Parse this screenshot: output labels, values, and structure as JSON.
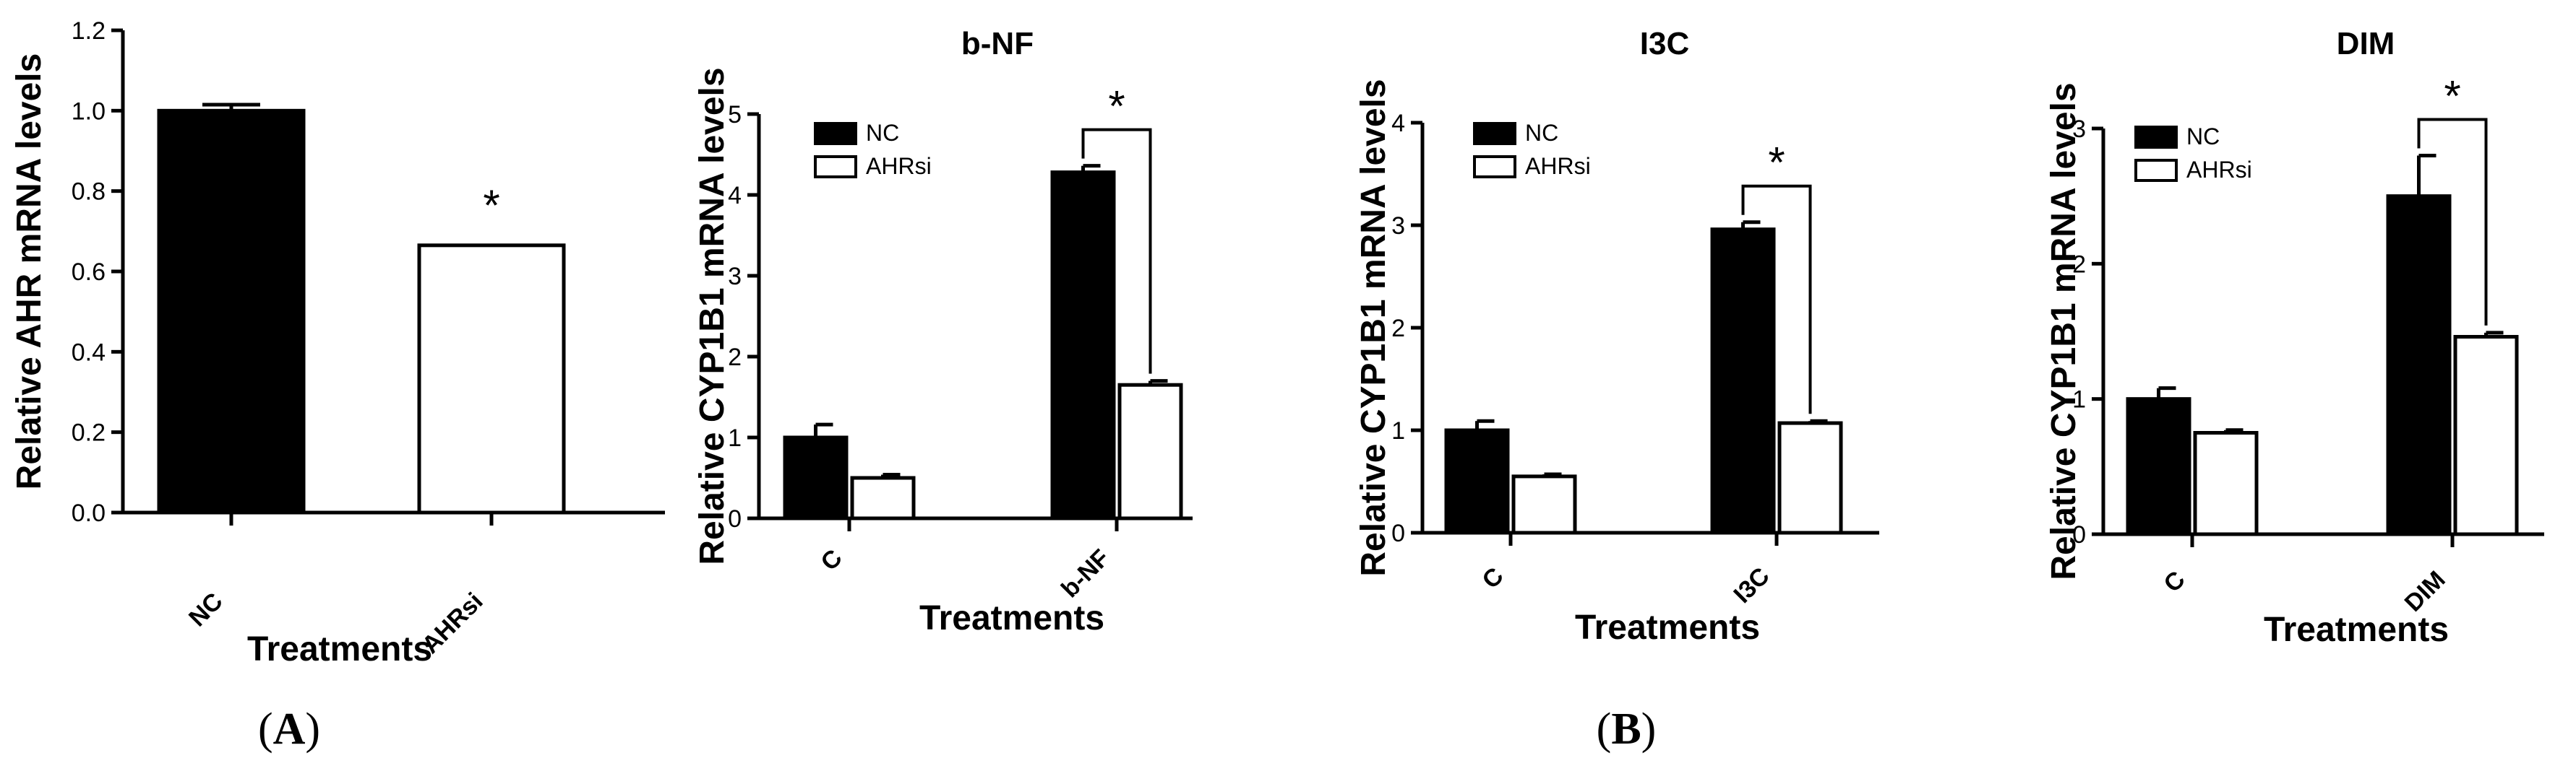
{
  "panel_labels": {
    "A": {
      "open": "(",
      "letter": "A",
      "close": ")"
    },
    "B": {
      "open": "(",
      "letter": "B",
      "close": ")"
    }
  },
  "colors": {
    "NC": "#000000",
    "AHRsi": "#ffffff",
    "outline": "#000000"
  },
  "chart_data": [
    {
      "type": "bar",
      "title": "",
      "xlabel": "Treatments",
      "ylabel": "Relative AHR mRNA levels",
      "categories": [
        "NC",
        "AHRsi"
      ],
      "ylim": [
        0,
        1.2
      ],
      "yticks": [
        "0.0",
        "0.2",
        "0.4",
        "0.6",
        "0.8",
        "1.0",
        "1.2"
      ],
      "series": [
        {
          "name": "NC",
          "values": [
            1.0,
            null
          ],
          "errors": [
            0.015,
            null
          ]
        },
        {
          "name": "AHRsi",
          "values": [
            null,
            0.665
          ],
          "errors": [
            null,
            0.0
          ]
        }
      ],
      "legend": false,
      "significance": [
        {
          "category": "AHRsi",
          "label": "*"
        }
      ]
    },
    {
      "type": "bar",
      "title": "b-NF",
      "xlabel": "Treatments",
      "ylabel": "Relative CYP1B1 mRNA levels",
      "categories": [
        "C",
        "b-NF"
      ],
      "ylim": [
        0,
        5
      ],
      "yticks": [
        "0",
        "1",
        "2",
        "3",
        "4",
        "5"
      ],
      "series": [
        {
          "name": "NC",
          "values": [
            1.0,
            4.28
          ],
          "errors": [
            0.16,
            0.08
          ]
        },
        {
          "name": "AHRsi",
          "values": [
            0.5,
            1.65
          ],
          "errors": [
            0.04,
            0.05
          ]
        }
      ],
      "legend": true,
      "legend_entries": [
        "NC",
        "AHRsi"
      ],
      "significance": [
        {
          "category": "b-NF",
          "label": "*"
        }
      ]
    },
    {
      "type": "bar",
      "title": "I3C",
      "xlabel": "Treatments",
      "ylabel": "Relative CYP1B1 mRNA levels",
      "categories": [
        "C",
        "I3C"
      ],
      "ylim": [
        0,
        4
      ],
      "yticks": [
        "0",
        "1",
        "2",
        "3",
        "4"
      ],
      "series": [
        {
          "name": "NC",
          "values": [
            1.0,
            2.96
          ],
          "errors": [
            0.09,
            0.07
          ]
        },
        {
          "name": "AHRsi",
          "values": [
            0.55,
            1.07
          ],
          "errors": [
            0.02,
            0.02
          ]
        }
      ],
      "legend": true,
      "legend_entries": [
        "NC",
        "AHRsi"
      ],
      "significance": [
        {
          "category": "I3C",
          "label": "*"
        }
      ]
    },
    {
      "type": "bar",
      "title": "DIM",
      "xlabel": "Treatments",
      "ylabel": "Relative CYP1B1 mRNA levels",
      "categories": [
        "C",
        "DIM"
      ],
      "ylim": [
        0,
        3
      ],
      "yticks": [
        "0",
        "1",
        "2",
        "3"
      ],
      "series": [
        {
          "name": "NC",
          "values": [
            1.0,
            2.5
          ],
          "errors": [
            0.08,
            0.3
          ]
        },
        {
          "name": "AHRsi",
          "values": [
            0.75,
            1.46
          ],
          "errors": [
            0.02,
            0.03
          ]
        }
      ],
      "legend": true,
      "legend_entries": [
        "NC",
        "AHRsi"
      ],
      "significance": [
        {
          "category": "DIM",
          "label": "*"
        }
      ]
    }
  ]
}
